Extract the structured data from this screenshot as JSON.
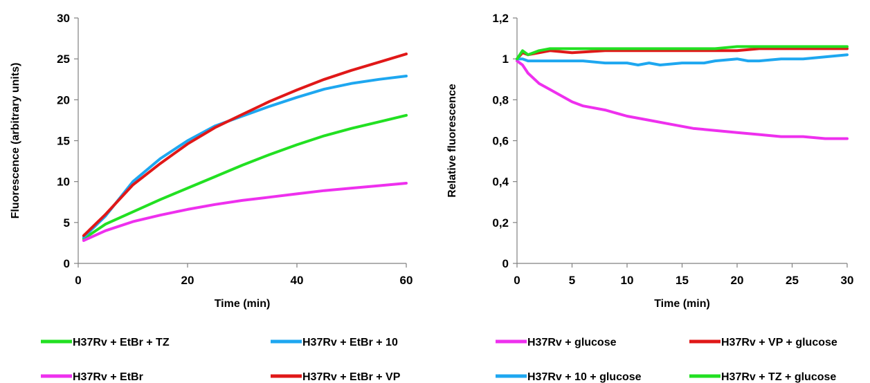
{
  "chart_data": [
    {
      "type": "line",
      "title": "",
      "xlabel": "Time (min)",
      "ylabel": "Fluorescence  (arbitrary units)",
      "xlim": [
        0,
        60
      ],
      "ylim": [
        0,
        30
      ],
      "xticks": [
        0,
        20,
        40,
        60
      ],
      "yticks": [
        0,
        5,
        10,
        15,
        20,
        25,
        30
      ],
      "xtick_labels": [
        "0",
        "20",
        "40",
        "60"
      ],
      "ytick_labels": [
        "0",
        "5",
        "10",
        "15",
        "20",
        "25",
        "30"
      ],
      "grid": false,
      "legend_position": "bottom",
      "series": [
        {
          "name": "H37Rv + EtBr + TZ",
          "color": "#22e022",
          "x": [
            1,
            5,
            10,
            15,
            20,
            25,
            30,
            35,
            40,
            45,
            50,
            55,
            60
          ],
          "y": [
            3.0,
            4.8,
            6.3,
            7.8,
            9.2,
            10.6,
            12.0,
            13.3,
            14.5,
            15.6,
            16.5,
            17.3,
            18.1
          ]
        },
        {
          "name": "H37Rv + EtBr + 10",
          "color": "#1ea7f0",
          "x": [
            1,
            5,
            10,
            15,
            20,
            25,
            30,
            35,
            40,
            45,
            50,
            55,
            60
          ],
          "y": [
            3.2,
            5.8,
            10.0,
            12.8,
            15.0,
            16.8,
            18.0,
            19.2,
            20.3,
            21.3,
            22.0,
            22.5,
            22.9
          ]
        },
        {
          "name": "H37Rv + EtBr",
          "color": "#ee30ee",
          "x": [
            1,
            5,
            10,
            15,
            20,
            25,
            30,
            35,
            40,
            45,
            50,
            55,
            60
          ],
          "y": [
            2.8,
            4.0,
            5.1,
            5.9,
            6.6,
            7.2,
            7.7,
            8.1,
            8.5,
            8.9,
            9.2,
            9.5,
            9.8
          ]
        },
        {
          "name": "H37Rv + EtBr + VP",
          "color": "#e01818",
          "x": [
            1,
            5,
            10,
            15,
            20,
            25,
            30,
            35,
            40,
            45,
            50,
            55,
            60
          ],
          "y": [
            3.4,
            6.0,
            9.6,
            12.2,
            14.6,
            16.6,
            18.2,
            19.8,
            21.2,
            22.5,
            23.6,
            24.6,
            25.6
          ]
        }
      ]
    },
    {
      "type": "line",
      "title": "",
      "xlabel": "Time (min)",
      "ylabel": "Relative fluorescence",
      "xlim": [
        0,
        30
      ],
      "ylim": [
        0,
        1.2
      ],
      "xticks": [
        0,
        5,
        10,
        15,
        20,
        25,
        30
      ],
      "yticks": [
        0,
        0.2,
        0.4,
        0.6,
        0.8,
        1,
        1.2
      ],
      "xtick_labels": [
        "0",
        "5",
        "10",
        "15",
        "20",
        "25",
        "30"
      ],
      "ytick_labels": [
        "0",
        "0,2",
        "0,4",
        "0,6",
        "0,8",
        "1",
        "1,2"
      ],
      "grid": false,
      "legend_position": "bottom",
      "series": [
        {
          "name": "H37Rv  + glucose",
          "color": "#ee30ee",
          "x": [
            0,
            0.5,
            1,
            2,
            3,
            4,
            5,
            6,
            8,
            10,
            12,
            14,
            16,
            18,
            20,
            22,
            24,
            26,
            28,
            30
          ],
          "y": [
            0.99,
            0.97,
            0.93,
            0.88,
            0.85,
            0.82,
            0.79,
            0.77,
            0.75,
            0.72,
            0.7,
            0.68,
            0.66,
            0.65,
            0.64,
            0.63,
            0.62,
            0.62,
            0.61,
            0.61
          ]
        },
        {
          "name": "H37Rv + VP + glucose",
          "color": "#e01818",
          "x": [
            0,
            0.5,
            1,
            2,
            3,
            5,
            8,
            10,
            12,
            15,
            18,
            20,
            22,
            25,
            28,
            30
          ],
          "y": [
            1.0,
            1.03,
            1.02,
            1.03,
            1.04,
            1.03,
            1.04,
            1.04,
            1.04,
            1.04,
            1.04,
            1.04,
            1.05,
            1.05,
            1.05,
            1.05
          ]
        },
        {
          "name": "H37Rv + 10 + glucose",
          "color": "#1ea7f0",
          "x": [
            0,
            0.5,
            1,
            2,
            4,
            6,
            8,
            10,
            11,
            12,
            13,
            15,
            17,
            18,
            20,
            21,
            22,
            24,
            26,
            28,
            30
          ],
          "y": [
            1.0,
            1.0,
            0.99,
            0.99,
            0.99,
            0.99,
            0.98,
            0.98,
            0.97,
            0.98,
            0.97,
            0.98,
            0.98,
            0.99,
            1.0,
            0.99,
            0.99,
            1.0,
            1.0,
            1.01,
            1.02
          ]
        },
        {
          "name": "H37Rv + TZ + glucose",
          "color": "#22e022",
          "x": [
            0,
            0.5,
            1,
            2,
            3,
            5,
            8,
            10,
            12,
            15,
            18,
            20,
            22,
            25,
            28,
            30
          ],
          "y": [
            1.0,
            1.04,
            1.02,
            1.04,
            1.05,
            1.05,
            1.05,
            1.05,
            1.05,
            1.05,
            1.05,
            1.06,
            1.06,
            1.06,
            1.06,
            1.06
          ]
        }
      ]
    }
  ]
}
